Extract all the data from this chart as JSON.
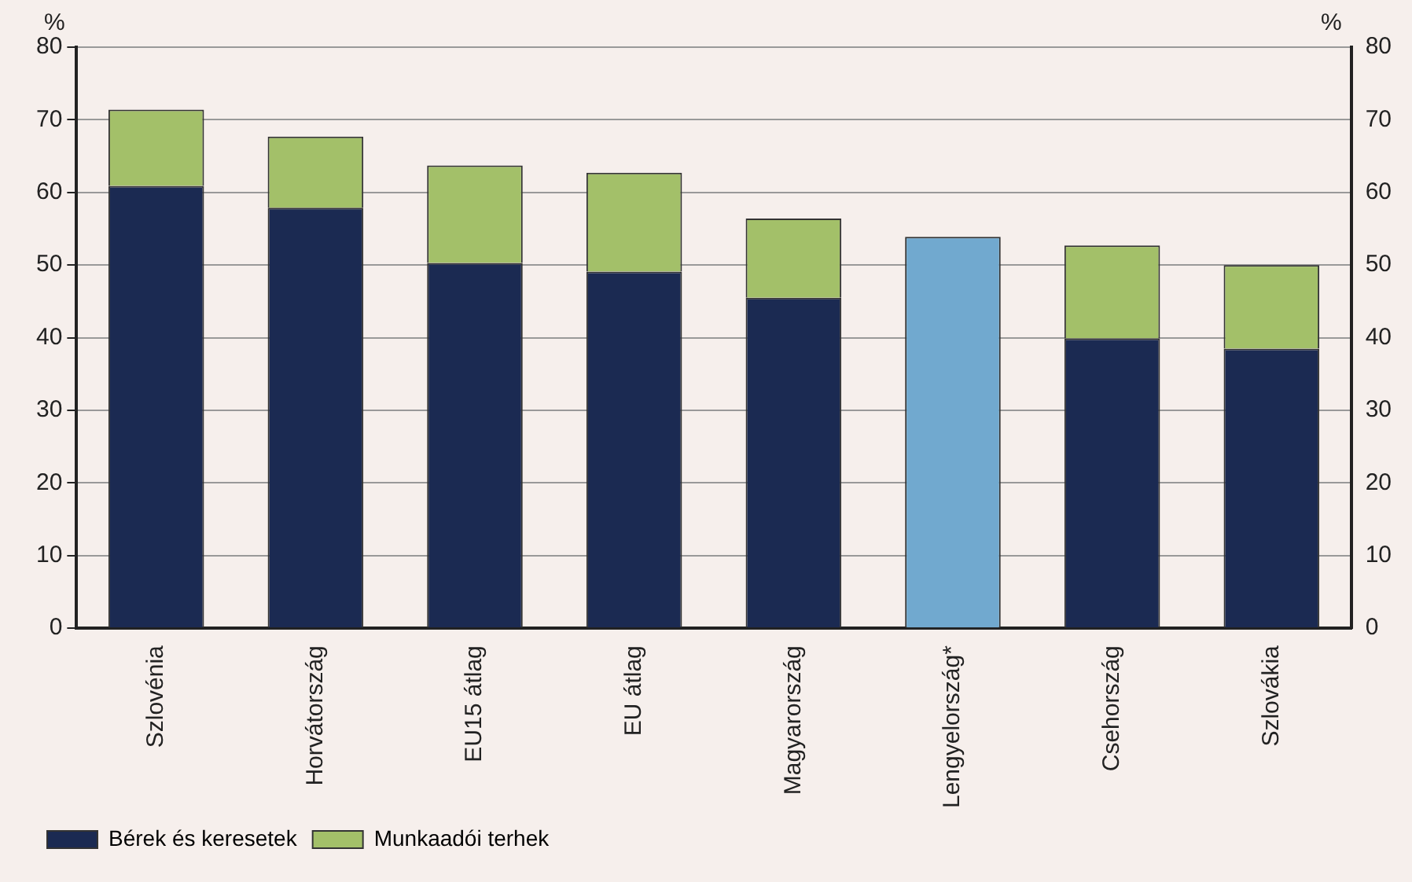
{
  "chart_data": {
    "type": "bar",
    "stacked": true,
    "ylabel": "%",
    "y2label": "%",
    "categories": [
      "Szlovénia",
      "Horvátország",
      "EU15 átlag",
      "EU átlag",
      "Magyarország",
      "Lengyelország*",
      "Csehország",
      "Szlovákia"
    ],
    "series": [
      {
        "name": "Bérek és keresetek",
        "color": "#1b2a52",
        "colors": [
          "#1b2a52",
          "#1b2a52",
          "#1b2a52",
          "#1b2a52",
          "#1b2a52",
          "#71a9cf",
          "#1b2a52",
          "#1b2a52"
        ],
        "values": [
          60.9,
          57.9,
          50.3,
          49.1,
          45.5,
          53.9,
          39.9,
          38.5
        ]
      },
      {
        "name": "Munkaadói terhek",
        "color": "#a3c069",
        "values": [
          10.5,
          9.8,
          13.4,
          13.6,
          10.9,
          null,
          12.8,
          11.5
        ]
      }
    ],
    "ylim": [
      0,
      80
    ],
    "yticks": [
      0,
      10,
      20,
      30,
      40,
      50,
      60,
      70,
      80
    ],
    "y2lim": [
      0,
      80
    ],
    "y2ticks": [
      0,
      10,
      20,
      30,
      40,
      50,
      60,
      70,
      80
    ],
    "grid": "y",
    "legend": "bottom left"
  }
}
